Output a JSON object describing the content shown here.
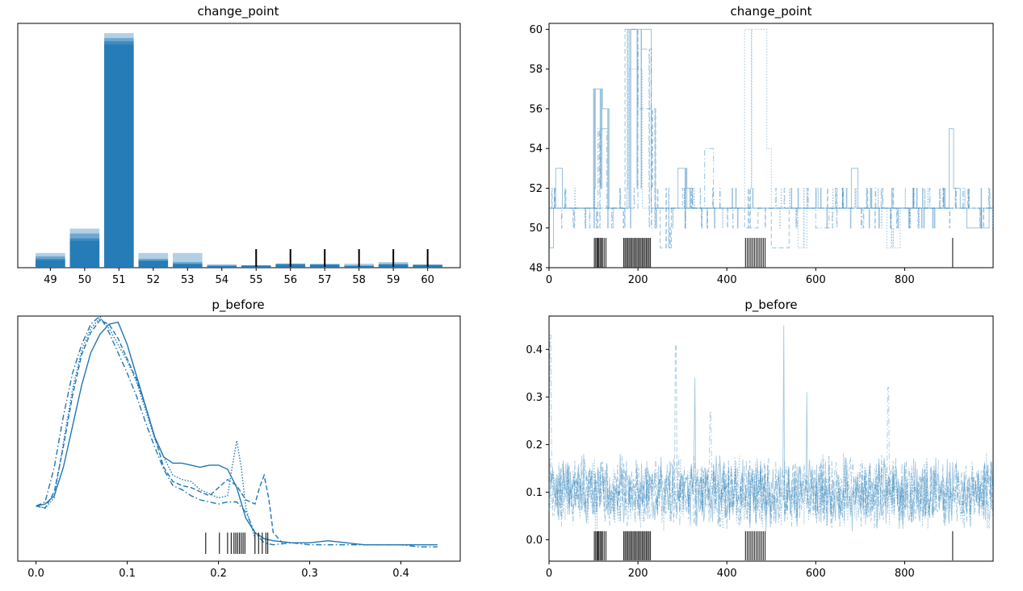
{
  "chart_data": [
    {
      "type": "bar",
      "title": "change_point",
      "categories": [
        49,
        50,
        51,
        52,
        53,
        54,
        55,
        56,
        57,
        58,
        59,
        60
      ],
      "series": [
        {
          "values": [
            18,
            48,
            288,
            18,
            18,
            3,
            2,
            5,
            5,
            5,
            7,
            4
          ]
        },
        {
          "values": [
            14,
            42,
            282,
            11,
            7,
            4,
            3,
            4,
            4,
            3,
            5,
            4
          ]
        },
        {
          "values": [
            11,
            36,
            278,
            9,
            5,
            2,
            3,
            5,
            4,
            2,
            4,
            3
          ]
        },
        {
          "values": [
            9,
            33,
            274,
            8,
            4,
            2,
            2,
            3,
            3,
            2,
            3,
            3
          ]
        }
      ],
      "ylim": [
        0,
        300
      ],
      "marker_ticks": [
        55,
        56,
        57,
        58,
        59,
        60
      ],
      "color": "#1f77b4"
    },
    {
      "type": "line",
      "title": "change_point",
      "xlim": [
        0,
        999
      ],
      "ylim": [
        48,
        60.3
      ],
      "xticks": [
        0,
        200,
        400,
        600,
        800
      ],
      "yticks": [
        48,
        50,
        52,
        54,
        56,
        58,
        60
      ],
      "rug_points": [
        102,
        105,
        108,
        110,
        112,
        115,
        118,
        120,
        124,
        128,
        168,
        171,
        174,
        177,
        180,
        183,
        186,
        189,
        192,
        195,
        198,
        201,
        204,
        207,
        210,
        213,
        216,
        219,
        222,
        225,
        228,
        442,
        446,
        450,
        454,
        458,
        462,
        466,
        470,
        474,
        478,
        482,
        486,
        908
      ],
      "series": [
        {
          "style": "solid",
          "base": 51,
          "excursions": [
            [
              0,
              10,
              49
            ],
            [
              15,
              30,
              53
            ],
            [
              100,
              120,
              57
            ],
            [
              120,
              135,
              56
            ],
            [
              180,
              230,
              60
            ],
            [
              290,
              310,
              53
            ],
            [
              680,
              695,
              53
            ],
            [
              900,
              910,
              55
            ],
            [
              910,
              925,
              52
            ],
            [
              940,
              990,
              50
            ]
          ]
        },
        {
          "style": "dashed",
          "base": 51,
          "excursions": [
            [
              170,
              200,
              60
            ],
            [
              200,
              240,
              56
            ],
            [
              250,
              275,
              49
            ],
            [
              300,
              320,
              52
            ],
            [
              440,
              470,
              50
            ],
            [
              500,
              540,
              49
            ]
          ]
        },
        {
          "style": "dotted",
          "base": 51,
          "excursions": [
            [
              180,
              210,
              58
            ],
            [
              440,
              490,
              60
            ],
            [
              490,
              500,
              54
            ],
            [
              560,
              580,
              49
            ],
            [
              760,
              790,
              49
            ]
          ]
        },
        {
          "style": "dashdot",
          "base": 51,
          "excursions": [
            [
              110,
              130,
              55
            ],
            [
              200,
              230,
              59
            ],
            [
              350,
              370,
              54
            ],
            [
              600,
              630,
              50
            ]
          ]
        }
      ],
      "color": "#1f77b4"
    },
    {
      "type": "line",
      "title": "p_before",
      "xlim": [
        -0.02,
        0.465
      ],
      "ylim": [
        -0.6,
        11.4
      ],
      "xticks": [
        "0.0",
        "0.1",
        "0.2",
        "0.3",
        "0.4"
      ],
      "rug_points": [
        0.186,
        0.201,
        0.21,
        0.214,
        0.217,
        0.219,
        0.221,
        0.223,
        0.225,
        0.227,
        0.229,
        0.24,
        0.244,
        0.248,
        0.252,
        0.254
      ],
      "series": [
        {
          "style": "solid",
          "x": [
            0.0,
            0.01,
            0.02,
            0.03,
            0.04,
            0.05,
            0.06,
            0.07,
            0.08,
            0.09,
            0.1,
            0.11,
            0.12,
            0.13,
            0.14,
            0.15,
            0.16,
            0.17,
            0.18,
            0.19,
            0.2,
            0.21,
            0.22,
            0.23,
            0.24,
            0.25,
            0.26,
            0.28,
            0.3,
            0.32,
            0.34,
            0.36,
            0.38,
            0.4,
            0.42,
            0.44
          ],
          "y": [
            2.1,
            2.2,
            2.6,
            4.0,
            6.0,
            8.0,
            9.6,
            10.5,
            11.0,
            11.1,
            10.0,
            8.5,
            7.0,
            5.5,
            4.5,
            4.2,
            4.2,
            4.1,
            4.0,
            4.1,
            4.1,
            3.9,
            3.0,
            1.5,
            0.8,
            0.5,
            0.4,
            0.3,
            0.3,
            0.4,
            0.3,
            0.2,
            0.2,
            0.2,
            0.2,
            0.2
          ]
        },
        {
          "style": "dashed",
          "x": [
            0.0,
            0.01,
            0.02,
            0.03,
            0.04,
            0.05,
            0.06,
            0.07,
            0.08,
            0.09,
            0.1,
            0.11,
            0.12,
            0.13,
            0.14,
            0.15,
            0.16,
            0.17,
            0.18,
            0.19,
            0.2,
            0.21,
            0.22,
            0.23,
            0.24,
            0.245,
            0.25,
            0.255,
            0.26,
            0.27
          ],
          "y": [
            2.1,
            2.0,
            2.8,
            5.0,
            7.5,
            9.5,
            10.6,
            11.2,
            11.0,
            10.3,
            9.3,
            8.3,
            7.0,
            5.5,
            4.0,
            3.3,
            3.1,
            3.0,
            2.8,
            2.6,
            3.0,
            3.4,
            3.1,
            2.4,
            2.2,
            3.0,
            3.6,
            2.5,
            0.8,
            0.3
          ]
        },
        {
          "style": "dotted",
          "x": [
            0.0,
            0.01,
            0.02,
            0.03,
            0.04,
            0.05,
            0.06,
            0.07,
            0.08,
            0.09,
            0.1,
            0.11,
            0.12,
            0.13,
            0.14,
            0.15,
            0.16,
            0.17,
            0.18,
            0.19,
            0.2,
            0.21,
            0.215,
            0.22,
            0.225,
            0.23,
            0.24
          ],
          "y": [
            2.1,
            2.0,
            2.5,
            5.2,
            7.8,
            9.7,
            10.8,
            11.3,
            10.8,
            10.0,
            9.2,
            8.2,
            6.8,
            5.4,
            4.5,
            3.6,
            3.4,
            3.3,
            2.9,
            2.7,
            2.5,
            2.6,
            4.0,
            5.3,
            4.0,
            2.0,
            0.5
          ]
        },
        {
          "style": "dashdot",
          "x": [
            0.0,
            0.01,
            0.02,
            0.03,
            0.04,
            0.05,
            0.06,
            0.07,
            0.08,
            0.09,
            0.1,
            0.11,
            0.12,
            0.13,
            0.14,
            0.15,
            0.16,
            0.17,
            0.18,
            0.19,
            0.2,
            0.21,
            0.22,
            0.23,
            0.24,
            0.25,
            0.26,
            0.28,
            0.3,
            0.32,
            0.34,
            0.36,
            0.38,
            0.4,
            0.42,
            0.44
          ],
          "y": [
            2.1,
            2.3,
            4.0,
            6.5,
            8.6,
            10.0,
            11.0,
            11.4,
            10.6,
            9.6,
            8.6,
            7.5,
            6.2,
            5.0,
            3.9,
            3.1,
            2.9,
            2.6,
            2.4,
            2.3,
            2.2,
            2.3,
            2.3,
            1.8,
            0.8,
            0.3,
            0.2,
            0.3,
            0.2,
            0.2,
            0.2,
            0.2,
            0.2,
            0.2,
            0.1,
            0.1
          ]
        }
      ],
      "color": "#1f77b4"
    },
    {
      "type": "line",
      "title": "p_before",
      "xlim": [
        0,
        999
      ],
      "ylim": [
        -0.045,
        0.47
      ],
      "xticks": [
        0,
        200,
        400,
        600,
        800
      ],
      "yticks": [
        "0.0",
        "0.1",
        "0.2",
        "0.3",
        "0.4"
      ],
      "rug_points": [
        102,
        105,
        108,
        110,
        112,
        115,
        118,
        120,
        124,
        128,
        168,
        171,
        174,
        177,
        180,
        183,
        186,
        189,
        192,
        195,
        198,
        201,
        204,
        207,
        210,
        213,
        216,
        219,
        222,
        225,
        228,
        442,
        446,
        450,
        454,
        458,
        462,
        466,
        470,
        474,
        478,
        482,
        486,
        908
      ],
      "trace_mean": 0.1,
      "trace_noise": 0.06,
      "spikes": [
        [
          3,
          0.43
        ],
        [
          285,
          0.41
        ],
        [
          328,
          0.34
        ],
        [
          363,
          0.27
        ],
        [
          528,
          0.45
        ],
        [
          580,
          0.31
        ],
        [
          763,
          0.32
        ]
      ],
      "color": "#1f77b4"
    }
  ]
}
